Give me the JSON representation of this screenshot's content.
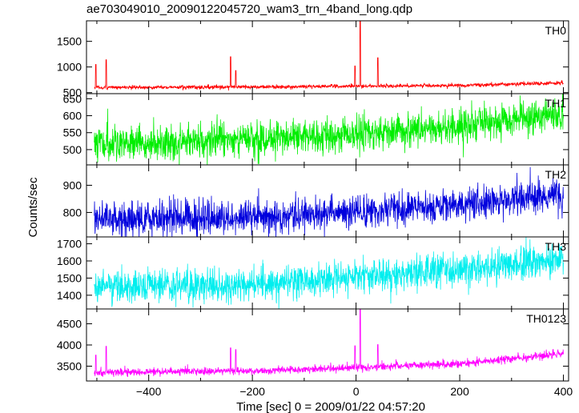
{
  "chart_data": {
    "type": "line",
    "title": "ae703049010_20090122045720_wam3_trn_4band_long.qdp",
    "xlabel": "Time [sec] 0 = 2009/01/22 04:57:20",
    "ylabel": "Counts/sec",
    "xlim": [
      -520,
      410
    ],
    "x_ticks": [
      -400,
      -200,
      0,
      200,
      400
    ],
    "x_range": [
      -505,
      400
    ],
    "panels": [
      {
        "name": "TH0",
        "color": "#ff0000",
        "ylim": [
          480,
          1900
        ],
        "y_ticks": [
          500,
          1000,
          1500
        ],
        "baseline": [
          [
            -505,
            600
          ],
          [
            -200,
            610
          ],
          [
            0,
            625
          ],
          [
            200,
            640
          ],
          [
            400,
            690
          ]
        ],
        "noise": 18,
        "spikes": [
          [
            -502,
            1050
          ],
          [
            -482,
            1140
          ],
          [
            -242,
            1200
          ],
          [
            -232,
            930
          ],
          [
            -2,
            1020
          ],
          [
            8,
            1900
          ],
          [
            42,
            1180
          ]
        ]
      },
      {
        "name": "TH1",
        "color": "#00ee00",
        "ylim": [
          455,
          665
        ],
        "y_ticks": [
          500,
          550,
          600,
          650
        ],
        "baseline": [
          [
            -505,
            515
          ],
          [
            -200,
            530
          ],
          [
            0,
            545
          ],
          [
            200,
            565
          ],
          [
            400,
            605
          ]
        ],
        "noise": 26,
        "spikes": []
      },
      {
        "name": "TH2",
        "color": "#0000dd",
        "ylim": [
          710,
          975
        ],
        "y_ticks": [
          800,
          900
        ],
        "baseline": [
          [
            -505,
            775
          ],
          [
            -200,
            782
          ],
          [
            0,
            805
          ],
          [
            200,
            830
          ],
          [
            400,
            865
          ]
        ],
        "noise": 30,
        "spikes": []
      },
      {
        "name": "TH3",
        "color": "#00eeee",
        "ylim": [
          1320,
          1740
        ],
        "y_ticks": [
          1400,
          1500,
          1600,
          1700
        ],
        "baseline": [
          [
            -505,
            1450
          ],
          [
            -200,
            1460
          ],
          [
            0,
            1500
          ],
          [
            200,
            1550
          ],
          [
            400,
            1610
          ]
        ],
        "noise": 48,
        "spikes": []
      },
      {
        "name": "TH0123",
        "color": "#ff00ff",
        "ylim": [
          3150,
          4850
        ],
        "y_ticks": [
          3500,
          4000,
          4500
        ],
        "baseline": [
          [
            -505,
            3350
          ],
          [
            -200,
            3390
          ],
          [
            0,
            3460
          ],
          [
            200,
            3560
          ],
          [
            400,
            3790
          ]
        ],
        "noise": 45,
        "spikes": [
          [
            -502,
            3760
          ],
          [
            -482,
            3970
          ],
          [
            -242,
            3930
          ],
          [
            -232,
            3890
          ],
          [
            -2,
            3980
          ],
          [
            8,
            4850
          ],
          [
            42,
            4010
          ]
        ]
      }
    ]
  }
}
